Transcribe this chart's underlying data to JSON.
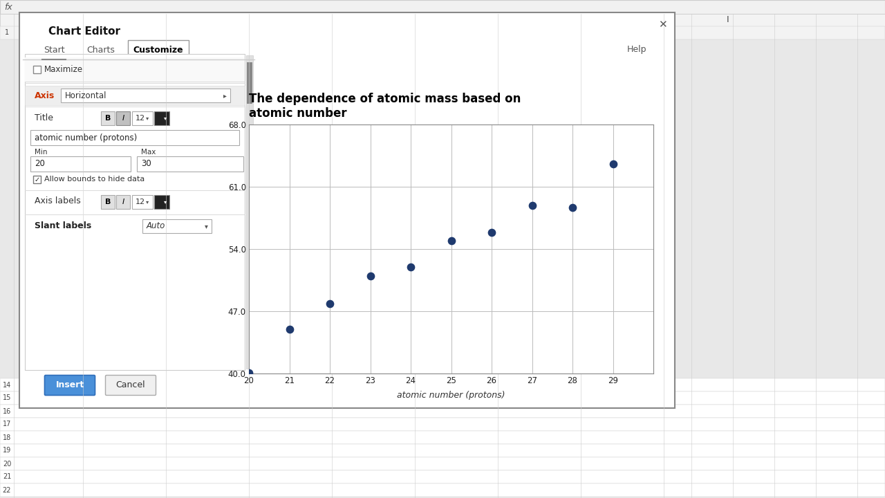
{
  "scatter_x": [
    20,
    21,
    22,
    23,
    24,
    25,
    26,
    27,
    28,
    29
  ],
  "scatter_y": [
    40.08,
    44.96,
    47.87,
    50.94,
    52.0,
    54.94,
    55.85,
    58.93,
    58.69,
    63.55
  ],
  "scatter_color": "#1f3a6e",
  "marker_size": 55,
  "chart_title": "The dependence of atomic mass based on\natomic number",
  "chart_title_fontsize": 12,
  "chart_title_fontweight": "bold",
  "xlabel": "atomic number (protons)",
  "xlim": [
    20,
    30
  ],
  "ylim": [
    40.0,
    68.0
  ],
  "yticks": [
    40.0,
    47.0,
    54.0,
    61.0,
    68.0
  ],
  "xticks": [
    20,
    21,
    22,
    23,
    24,
    25,
    26,
    27,
    28,
    29
  ],
  "grid_color": "#bbbbbb",
  "chart_area_bg": "#ffffff",
  "spreadsheet_bg": "#e8e8e8",
  "row_header_bg": "#f3f3f3",
  "col_header_bg": "#f3f3f3",
  "dialog_bg": "#ffffff",
  "dialog_border": "#888888",
  "left_panel_bg": "#ffffff",
  "axis_section_bg": "#eeeeee",
  "insert_btn_color": "#4a90d9",
  "insert_btn_border": "#2d6cb8"
}
